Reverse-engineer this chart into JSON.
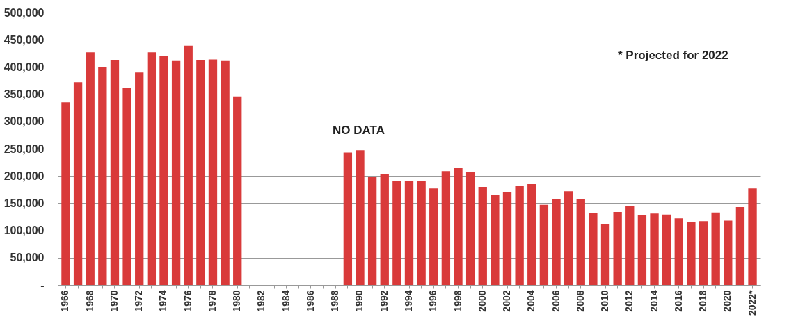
{
  "chart_data": {
    "type": "bar",
    "categories": [
      "1966",
      null,
      "1968",
      null,
      "1970",
      null,
      "1972",
      null,
      "1974",
      null,
      "1976",
      null,
      "1978",
      null,
      "1980",
      null,
      "1982",
      null,
      "1984",
      null,
      "1986",
      null,
      "1988",
      null,
      "1990",
      null,
      "1992",
      null,
      "1994",
      null,
      "1996",
      null,
      "1998",
      null,
      "2000",
      null,
      "2002",
      null,
      "2004",
      null,
      "2006",
      null,
      "2008",
      null,
      "2010",
      null,
      "2012",
      null,
      "2014",
      null,
      "2016",
      null,
      "2018",
      null,
      "2020",
      null,
      "2022*"
    ],
    "values": [
      335000,
      372000,
      427000,
      400000,
      412000,
      362000,
      390000,
      427000,
      421000,
      411000,
      439000,
      412000,
      414000,
      411000,
      346000,
      null,
      null,
      null,
      null,
      null,
      null,
      null,
      null,
      243000,
      247000,
      199000,
      204000,
      191000,
      190000,
      191000,
      177000,
      209000,
      215000,
      208000,
      180000,
      165000,
      171000,
      182000,
      185000,
      147000,
      158000,
      172000,
      157000,
      132000,
      111000,
      134000,
      144000,
      128000,
      131000,
      129000,
      122000,
      115000,
      117000,
      133000,
      118000,
      143000,
      177000
    ],
    "color": "#d93a3a",
    "ylim": [
      0,
      500000
    ],
    "yticks": [
      {
        "value": 0,
        "label": "-"
      },
      {
        "value": 50000,
        "label": "50,000"
      },
      {
        "value": 100000,
        "label": "100,000"
      },
      {
        "value": 150000,
        "label": "150,000"
      },
      {
        "value": 200000,
        "label": "200,000"
      },
      {
        "value": 250000,
        "label": "250,000"
      },
      {
        "value": 300000,
        "label": "300,000"
      },
      {
        "value": 350000,
        "label": "350,000"
      },
      {
        "value": 400000,
        "label": "400,000"
      },
      {
        "value": 450000,
        "label": "450,000"
      },
      {
        "value": 500000,
        "label": "500,000"
      }
    ],
    "grid": "y",
    "annotations": [
      "NO DATA",
      "* Projected for 2022"
    ]
  }
}
